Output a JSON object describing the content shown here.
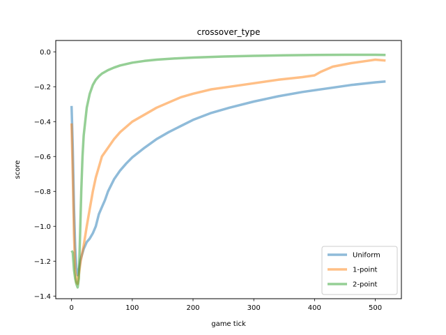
{
  "chart_data": {
    "type": "line",
    "title": "crossover_type",
    "xlabel": "game tick",
    "ylabel": "score",
    "xlim": [
      -26,
      543
    ],
    "ylim": [
      -1.415,
      0.065
    ],
    "xticks": [
      0,
      100,
      200,
      300,
      400,
      500
    ],
    "xtick_labels": [
      "0",
      "100",
      "200",
      "300",
      "400",
      "500"
    ],
    "yticks": [
      0.0,
      -0.2,
      -0.4,
      -0.6,
      -0.8,
      -1.0,
      -1.2,
      -1.4
    ],
    "ytick_labels": [
      "0.0",
      "−0.2",
      "−0.4",
      "−0.6",
      "−0.8",
      "−1.0",
      "−1.2",
      "−1.4"
    ],
    "grid": false,
    "legend_position": "lower-right",
    "series": [
      {
        "name": "Uniform",
        "color": "#1f77b4",
        "x": [
          0,
          2,
          4,
          6,
          8,
          10,
          12,
          15,
          20,
          25,
          30,
          35,
          40,
          45,
          50,
          55,
          60,
          70,
          80,
          90,
          100,
          120,
          140,
          160,
          180,
          200,
          230,
          260,
          300,
          340,
          380,
          420,
          460,
          500,
          517
        ],
        "y": [
          -0.31,
          -0.55,
          -0.9,
          -1.12,
          -1.24,
          -1.28,
          -1.25,
          -1.19,
          -1.13,
          -1.09,
          -1.07,
          -1.04,
          -1.0,
          -0.93,
          -0.89,
          -0.85,
          -0.8,
          -0.73,
          -0.68,
          -0.64,
          -0.605,
          -0.55,
          -0.5,
          -0.46,
          -0.425,
          -0.39,
          -0.35,
          -0.32,
          -0.285,
          -0.255,
          -0.23,
          -0.21,
          -0.19,
          -0.175,
          -0.17
        ]
      },
      {
        "name": "1-point",
        "color": "#ff7f0e",
        "x": [
          0,
          2,
          4,
          6,
          8,
          10,
          12,
          15,
          20,
          25,
          30,
          35,
          40,
          45,
          50,
          60,
          70,
          80,
          90,
          100,
          120,
          140,
          160,
          180,
          200,
          230,
          260,
          300,
          340,
          380,
          400,
          410,
          430,
          460,
          490,
          500,
          517
        ],
        "y": [
          -0.41,
          -0.7,
          -1.05,
          -1.25,
          -1.32,
          -1.33,
          -1.28,
          -1.2,
          -1.11,
          -1.0,
          -0.9,
          -0.8,
          -0.72,
          -0.66,
          -0.6,
          -0.55,
          -0.5,
          -0.46,
          -0.43,
          -0.4,
          -0.36,
          -0.32,
          -0.29,
          -0.26,
          -0.24,
          -0.215,
          -0.2,
          -0.18,
          -0.16,
          -0.145,
          -0.135,
          -0.115,
          -0.085,
          -0.065,
          -0.05,
          -0.045,
          -0.05
        ]
      },
      {
        "name": "2-point",
        "color": "#2ca02c",
        "x": [
          0,
          2,
          4,
          6,
          8,
          10,
          12,
          14,
          16,
          18,
          20,
          25,
          30,
          35,
          40,
          45,
          50,
          60,
          70,
          80,
          90,
          100,
          120,
          140,
          170,
          200,
          250,
          300,
          350,
          400,
          450,
          500,
          517
        ],
        "y": [
          -1.14,
          -1.15,
          -1.25,
          -1.3,
          -1.33,
          -1.35,
          -1.3,
          -1.05,
          -0.8,
          -0.6,
          -0.48,
          -0.32,
          -0.24,
          -0.19,
          -0.16,
          -0.14,
          -0.125,
          -0.105,
          -0.09,
          -0.078,
          -0.07,
          -0.062,
          -0.052,
          -0.045,
          -0.038,
          -0.033,
          -0.027,
          -0.023,
          -0.02,
          -0.018,
          -0.017,
          -0.017,
          -0.018
        ]
      }
    ]
  }
}
